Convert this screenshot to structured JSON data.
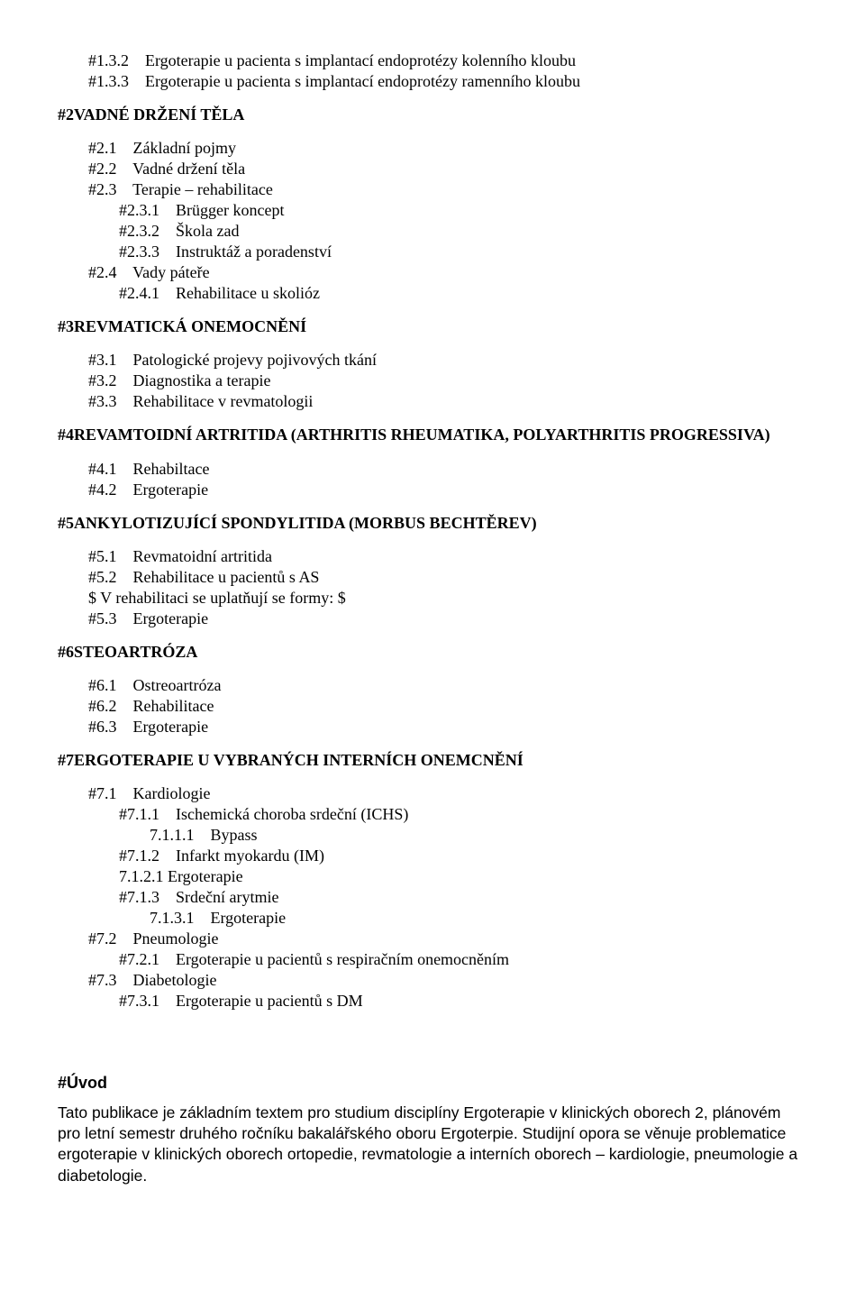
{
  "lines": [
    {
      "text": "#1.3.2    Ergoterapie u pacienta s implantací endoprotézy kolenního kloubu",
      "cls": "indent1"
    },
    {
      "text": "#1.3.3    Ergoterapie u pacienta s implantací endoprotézy ramenního kloubu",
      "cls": "indent1"
    },
    {
      "gap": "section-gap"
    },
    {
      "text": "#2VADNÉ DRŽENÍ TĚLA",
      "cls": "bold"
    },
    {
      "gap": "section-gap"
    },
    {
      "text": "#2.1    Základní pojmy",
      "cls": "indent1"
    },
    {
      "text": "#2.2    Vadné držení těla",
      "cls": "indent1"
    },
    {
      "text": "#2.3    Terapie – rehabilitace",
      "cls": "indent1"
    },
    {
      "text": "#2.3.1    Brügger koncept",
      "cls": "indent2"
    },
    {
      "text": "#2.3.2    Škola zad",
      "cls": "indent2"
    },
    {
      "text": "#2.3.3    Instruktáž a poradenství",
      "cls": "indent2"
    },
    {
      "text": "#2.4    Vady páteře",
      "cls": "indent1"
    },
    {
      "text": "#2.4.1    Rehabilitace u skolióz",
      "cls": "indent2"
    },
    {
      "gap": "section-gap"
    },
    {
      "text": "#3REVMATICKÁ ONEMOCNĚNÍ",
      "cls": "bold"
    },
    {
      "gap": "section-gap"
    },
    {
      "text": "#3.1    Patologické projevy pojivových tkání",
      "cls": "indent1"
    },
    {
      "text": "#3.2    Diagnostika a terapie",
      "cls": "indent1"
    },
    {
      "text": "#3.3    Rehabilitace v revmatologii",
      "cls": "indent1"
    },
    {
      "gap": "section-gap"
    },
    {
      "text": "#4REVAMTOIDNÍ ARTRITIDA (ARTHRITIS RHEUMATIKA, POLYARTHRITIS PROGRESSIVA)",
      "cls": "bold"
    },
    {
      "gap": "section-gap"
    },
    {
      "text": "#4.1    Rehabiltace",
      "cls": "indent1"
    },
    {
      "text": "#4.2    Ergoterapie",
      "cls": "indent1"
    },
    {
      "gap": "section-gap"
    },
    {
      "text": "#5ANKYLOTIZUJÍCÍ SPONDYLITIDA (MORBUS BECHTĚREV)",
      "cls": "bold"
    },
    {
      "gap": "section-gap"
    },
    {
      "text": "#5.1    Revmatoidní artritida",
      "cls": "indent1"
    },
    {
      "text": "#5.2    Rehabilitace u pacientů s AS",
      "cls": "indent1"
    },
    {
      "text": "$ V rehabilitaci se uplatňují se formy: $",
      "cls": "indent1"
    },
    {
      "text": "#5.3    Ergoterapie",
      "cls": "indent1"
    },
    {
      "gap": "section-gap"
    },
    {
      "text": "#6STEOARTRÓZA",
      "cls": "bold"
    },
    {
      "gap": "section-gap"
    },
    {
      "text": "#6.1    Ostreoartróza",
      "cls": "indent1"
    },
    {
      "text": "#6.2    Rehabilitace",
      "cls": "indent1"
    },
    {
      "text": "#6.3    Ergoterapie",
      "cls": "indent1"
    },
    {
      "gap": "section-gap"
    },
    {
      "text": "#7ERGOTERAPIE U VYBRANÝCH INTERNÍCH ONEMCNĚNÍ",
      "cls": "bold"
    },
    {
      "gap": "section-gap"
    },
    {
      "text": "#7.1    Kardiologie",
      "cls": "indent1"
    },
    {
      "text": "#7.1.1    Ischemická choroba srdeční (ICHS)",
      "cls": "indent2"
    },
    {
      "text": "7.1.1.1    Bypass",
      "cls": "indent3"
    },
    {
      "text": "#7.1.2    Infarkt myokardu (IM)",
      "cls": "indent2"
    },
    {
      "text": "7.1.2.1 Ergoterapie",
      "cls": "indent2"
    },
    {
      "text": "#7.1.3    Srdeční arytmie",
      "cls": "indent2"
    },
    {
      "text": "7.1.3.1    Ergoterapie",
      "cls": "indent3"
    },
    {
      "text": "#7.2    Pneumologie",
      "cls": "indent1"
    },
    {
      "text": "#7.2.1    Ergoterapie u pacientů s respiračním onemocněním",
      "cls": "indent2"
    },
    {
      "text": "#7.3    Diabetologie",
      "cls": "indent1"
    },
    {
      "text": "#7.3.1    Ergoterapie u pacientů s DM",
      "cls": "indent2"
    }
  ],
  "intro": {
    "heading": "#Úvod",
    "body": "Tato publikace je základním textem pro studium disciplíny Ergoterapie v klinických oborech 2, plánovém pro letní semestr druhého ročníku bakalářského oboru Ergoterpie. Studijní opora se věnuje problematice ergoterapie v klinických oborech ortopedie, revmatologie a interních oborech – kardiologie, pneumologie a diabetologie."
  }
}
